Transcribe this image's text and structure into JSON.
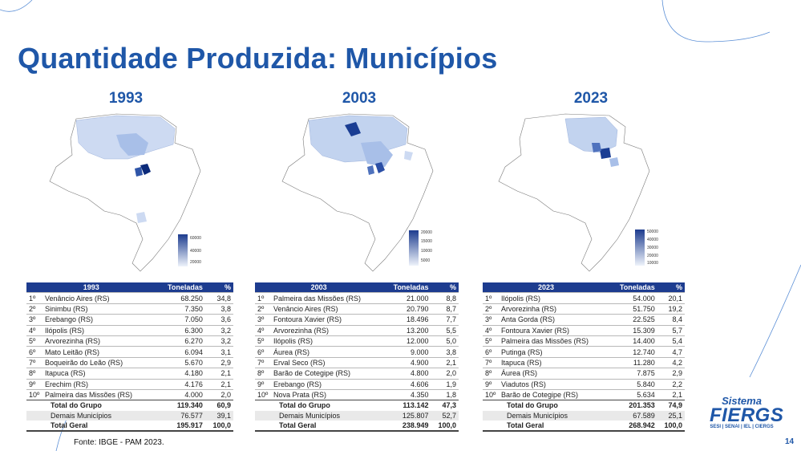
{
  "title": "Quantidade Produzida: Municípios",
  "source": "Fonte: IBGE - PAM 2023.",
  "page_number": "14",
  "logo": {
    "line1": "Sistema",
    "line2": "FIERGS",
    "line3": "SESI | SENAI | IEL | CIERGS"
  },
  "colors": {
    "title": "#1f57a8",
    "header": "#1d3c8f",
    "highlight": "#0b2a7a"
  },
  "maps": [
    {
      "year": "1993",
      "scale": [
        "60000",
        "40000",
        "20000"
      ]
    },
    {
      "year": "2003",
      "scale": [
        "20000",
        "15000",
        "10000",
        "5000"
      ]
    },
    {
      "year": "2023",
      "scale": [
        "50000",
        "40000",
        "30000",
        "20000",
        "10000"
      ]
    }
  ],
  "tables": [
    {
      "header": [
        "1993",
        "Toneladas",
        "%"
      ],
      "rows": [
        [
          "1º",
          "Venâncio Aires (RS)",
          "68.250",
          "34,8"
        ],
        [
          "2º",
          "Sinimbu (RS)",
          "7.350",
          "3,8"
        ],
        [
          "3º",
          "Erebango (RS)",
          "7.050",
          "3,6"
        ],
        [
          "4º",
          "Ilópolis (RS)",
          "6.300",
          "3,2"
        ],
        [
          "5º",
          "Arvorezinha (RS)",
          "6.270",
          "3,2"
        ],
        [
          "6º",
          "Mato Leitão (RS)",
          "6.094",
          "3,1"
        ],
        [
          "7º",
          "Boqueirão do Leão (RS)",
          "5.670",
          "2,9"
        ],
        [
          "8º",
          "Itapuca (RS)",
          "4.180",
          "2,1"
        ],
        [
          "9º",
          "Erechim (RS)",
          "4.176",
          "2,1"
        ],
        [
          "10º",
          "Palmeira das Missões (RS)",
          "4.000",
          "2,0"
        ]
      ],
      "total_grupo": [
        "Total do Grupo",
        "119.340",
        "60,9"
      ],
      "demais": [
        "Demais Municípios",
        "76.577",
        "39,1"
      ],
      "total_geral": [
        "Total Geral",
        "195.917",
        "100,0"
      ]
    },
    {
      "header": [
        "2003",
        "Toneladas",
        "%"
      ],
      "rows": [
        [
          "1º",
          "Palmeira das Missões (RS)",
          "21.000",
          "8,8"
        ],
        [
          "2º",
          "Venâncio Aires (RS)",
          "20.790",
          "8,7"
        ],
        [
          "3º",
          "Fontoura Xavier (RS)",
          "18.496",
          "7,7"
        ],
        [
          "4º",
          "Arvorezinha (RS)",
          "13.200",
          "5,5"
        ],
        [
          "5º",
          "Ilópolis (RS)",
          "12.000",
          "5,0"
        ],
        [
          "6º",
          "Áurea (RS)",
          "9.000",
          "3,8"
        ],
        [
          "7º",
          "Erval Seco (RS)",
          "4.900",
          "2,1"
        ],
        [
          "8º",
          "Barão de Cotegipe (RS)",
          "4.800",
          "2,0"
        ],
        [
          "9º",
          "Erebango (RS)",
          "4.606",
          "1,9"
        ],
        [
          "10º",
          "Nova Prata (RS)",
          "4.350",
          "1,8"
        ]
      ],
      "total_grupo": [
        "Total do Grupo",
        "113.142",
        "47,3"
      ],
      "demais": [
        "Demais Municípios",
        "125.807",
        "52,7"
      ],
      "total_geral": [
        "Total Geral",
        "238.949",
        "100,0"
      ]
    },
    {
      "header": [
        "2023",
        "Toneladas",
        "%"
      ],
      "rows": [
        [
          "1º",
          "Ilópolis (RS)",
          "54.000",
          "20,1"
        ],
        [
          "2º",
          "Arvorezinha (RS)",
          "51.750",
          "19,2"
        ],
        [
          "3º",
          "Anta Gorda (RS)",
          "22.525",
          "8,4"
        ],
        [
          "4º",
          "Fontoura Xavier (RS)",
          "15.309",
          "5,7"
        ],
        [
          "5º",
          "Palmeira das Missões (RS)",
          "14.400",
          "5,4"
        ],
        [
          "6º",
          "Putinga (RS)",
          "12.740",
          "4,7"
        ],
        [
          "7º",
          "Itapuca (RS)",
          "11.280",
          "4,2"
        ],
        [
          "8º",
          "Áurea (RS)",
          "7.875",
          "2,9"
        ],
        [
          "9º",
          "Viadutos (RS)",
          "5.840",
          "2,2"
        ],
        [
          "10º",
          "Barão de Cotegipe (RS)",
          "5.634",
          "2,1"
        ]
      ],
      "total_grupo": [
        "Total do Grupo",
        "201.353",
        "74,9"
      ],
      "demais": [
        "Demais Municípios",
        "67.589",
        "25,1"
      ],
      "total_geral": [
        "Total Geral",
        "268.942",
        "100,0"
      ]
    }
  ]
}
